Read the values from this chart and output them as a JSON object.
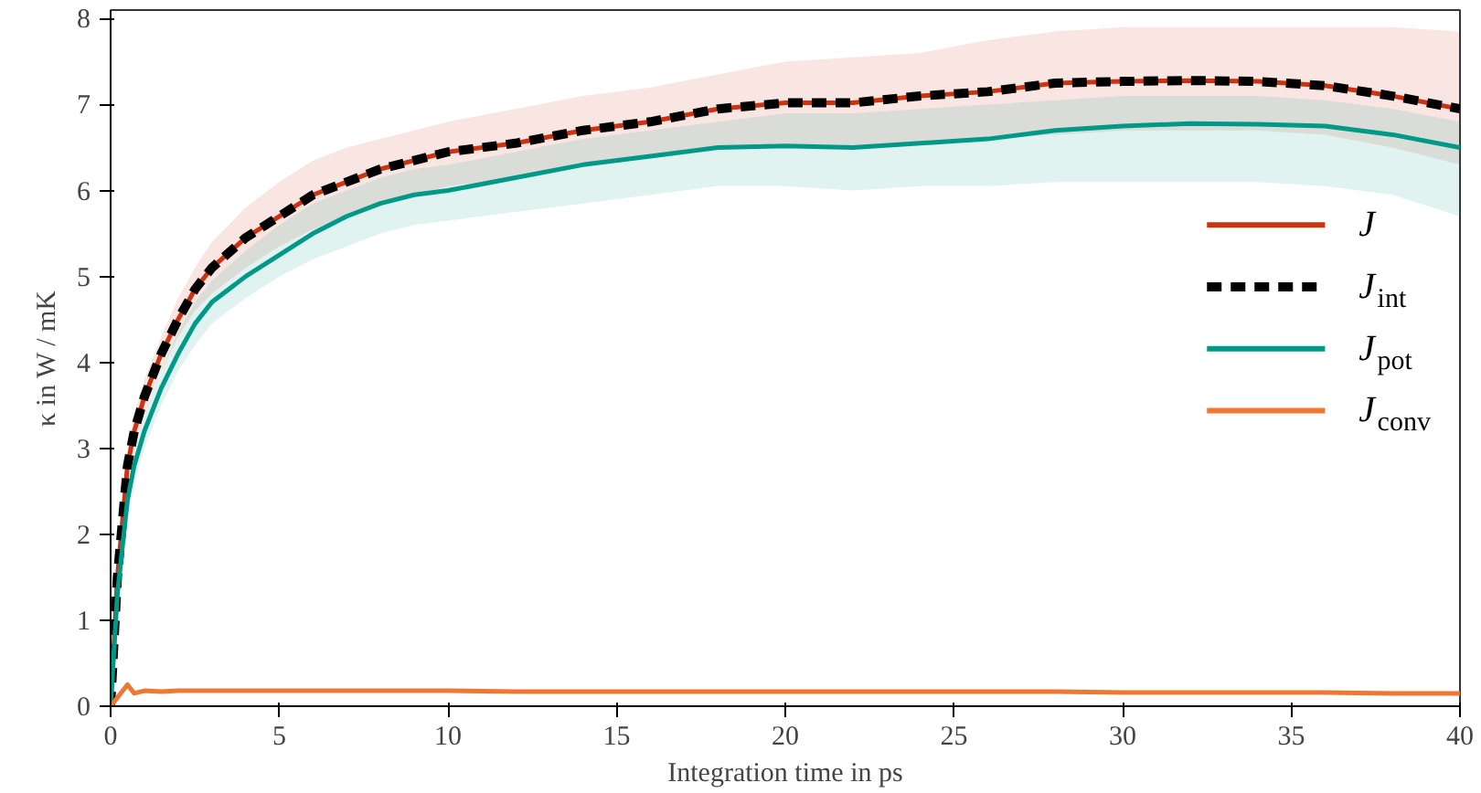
{
  "chart_data": {
    "type": "line",
    "xlabel": "Integration time in ps",
    "ylabel": "κ in W / mK",
    "x": [
      0,
      0.2,
      0.5,
      0.7,
      1,
      1.5,
      2,
      2.5,
      3,
      4,
      5,
      6,
      7,
      8,
      9,
      10,
      12,
      14,
      16,
      18,
      20,
      22,
      24,
      26,
      28,
      30,
      32,
      34,
      36,
      38,
      40
    ],
    "xlim": [
      0,
      40
    ],
    "xticks": [
      0,
      5,
      10,
      15,
      20,
      25,
      30,
      35,
      40
    ],
    "ylim": [
      0,
      8.1
    ],
    "yticks": [
      0,
      1,
      2,
      3,
      4,
      5,
      6,
      7,
      8
    ],
    "grid": false,
    "legend": "right",
    "series": [
      {
        "name": "J",
        "color": "#cc3311",
        "line_style": "solid",
        "values": [
          0,
          1.5,
          2.8,
          3.2,
          3.6,
          4.1,
          4.5,
          4.85,
          5.1,
          5.45,
          5.7,
          5.95,
          6.1,
          6.25,
          6.35,
          6.45,
          6.55,
          6.7,
          6.8,
          6.95,
          7.02,
          7.02,
          7.1,
          7.15,
          7.25,
          7.27,
          7.28,
          7.27,
          7.22,
          7.1,
          6.95
        ],
        "lower": [
          0,
          1.3,
          2.6,
          3.0,
          3.4,
          3.9,
          4.3,
          4.6,
          4.8,
          5.1,
          5.35,
          5.55,
          5.7,
          5.85,
          5.95,
          6.05,
          6.15,
          6.3,
          6.4,
          6.5,
          6.55,
          6.5,
          6.55,
          6.6,
          6.65,
          6.7,
          6.7,
          6.7,
          6.65,
          6.5,
          6.3
        ],
        "upper": [
          0,
          1.7,
          3.0,
          3.4,
          3.8,
          4.3,
          4.75,
          5.1,
          5.4,
          5.8,
          6.1,
          6.35,
          6.5,
          6.6,
          6.7,
          6.8,
          6.95,
          7.1,
          7.2,
          7.35,
          7.5,
          7.55,
          7.6,
          7.75,
          7.85,
          7.9,
          7.9,
          7.9,
          7.9,
          7.9,
          7.85
        ]
      },
      {
        "name": "J$_{int}$",
        "color": "#000000",
        "line_style": "dashed",
        "values": [
          0,
          1.5,
          2.8,
          3.2,
          3.6,
          4.1,
          4.5,
          4.85,
          5.1,
          5.45,
          5.7,
          5.95,
          6.1,
          6.25,
          6.35,
          6.45,
          6.55,
          6.7,
          6.8,
          6.95,
          7.02,
          7.02,
          7.1,
          7.15,
          7.25,
          7.27,
          7.28,
          7.27,
          7.22,
          7.1,
          6.95
        ]
      },
      {
        "name": "J$_{pot}$",
        "color": "#009988",
        "line_style": "solid",
        "values": [
          0,
          1.3,
          2.4,
          2.8,
          3.2,
          3.7,
          4.1,
          4.45,
          4.7,
          5.0,
          5.25,
          5.5,
          5.7,
          5.85,
          5.95,
          6.0,
          6.15,
          6.3,
          6.4,
          6.5,
          6.52,
          6.5,
          6.55,
          6.6,
          6.7,
          6.75,
          6.78,
          6.77,
          6.75,
          6.65,
          6.5
        ],
        "lower": [
          0,
          1.1,
          2.2,
          2.6,
          3.0,
          3.5,
          3.9,
          4.2,
          4.45,
          4.75,
          5.0,
          5.2,
          5.35,
          5.5,
          5.6,
          5.65,
          5.75,
          5.85,
          5.95,
          6.05,
          6.05,
          6.0,
          6.05,
          6.05,
          6.1,
          6.1,
          6.1,
          6.1,
          6.05,
          5.95,
          5.7
        ],
        "upper": [
          0,
          1.5,
          2.6,
          3.0,
          3.4,
          3.9,
          4.35,
          4.7,
          4.95,
          5.3,
          5.6,
          5.85,
          6.0,
          6.15,
          6.25,
          6.3,
          6.45,
          6.6,
          6.7,
          6.8,
          6.9,
          6.9,
          6.95,
          7.0,
          7.05,
          7.1,
          7.1,
          7.1,
          7.05,
          6.95,
          6.8
        ]
      },
      {
        "name": "J$_{conv}$",
        "color": "#ee7733",
        "line_style": "solid",
        "values": [
          0,
          0.1,
          0.25,
          0.15,
          0.18,
          0.17,
          0.18,
          0.18,
          0.18,
          0.18,
          0.18,
          0.18,
          0.18,
          0.18,
          0.18,
          0.18,
          0.17,
          0.17,
          0.17,
          0.17,
          0.17,
          0.17,
          0.17,
          0.17,
          0.17,
          0.16,
          0.16,
          0.16,
          0.16,
          0.15,
          0.15
        ]
      }
    ]
  }
}
